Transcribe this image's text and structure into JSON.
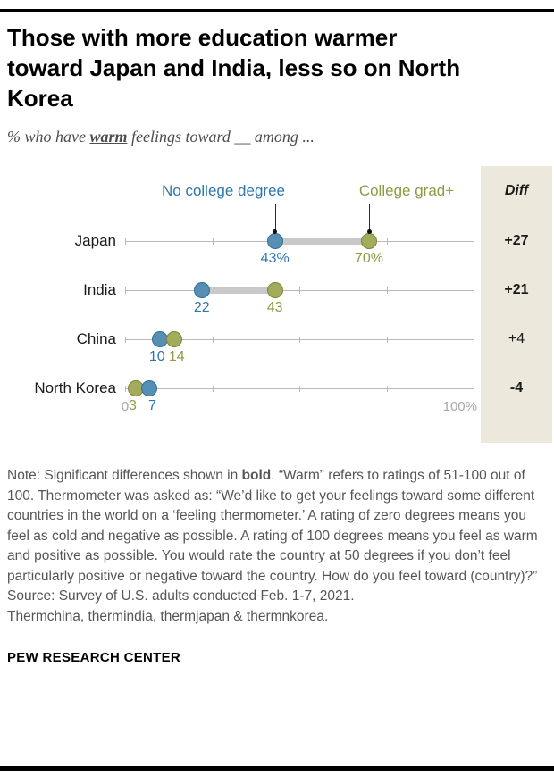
{
  "header": {
    "title_lines": [
      "Those with more education warmer",
      "toward Japan and India, less so on North",
      "Korea"
    ],
    "subtitle_prefix": "% who have ",
    "subtitle_emphasis": "warm",
    "subtitle_suffix": " feelings toward __ among ..."
  },
  "chart_data": {
    "type": "dumbbell",
    "categories": [
      "Japan",
      "India",
      "China",
      "North Korea"
    ],
    "series": [
      {
        "key": "no-college-degree",
        "name": "No college degree",
        "color": "#2e77ac",
        "dot_fill": "#568eb4",
        "dot_border": "#2f6f99",
        "values": [
          43,
          22,
          10,
          7
        ]
      },
      {
        "key": "college-grad",
        "name": "College grad+",
        "color": "#8f9a43",
        "dot_fill": "#a4ac5b",
        "dot_border": "#7c8439",
        "values": [
          70,
          43,
          14,
          3
        ]
      }
    ],
    "value_labels": [
      [
        "43%",
        "70%"
      ],
      [
        "22",
        "43"
      ],
      [
        "10",
        "14"
      ],
      [
        "7",
        "3"
      ]
    ],
    "diff_label": "Diff",
    "diffs": [
      {
        "text": "+27",
        "bold": true
      },
      {
        "text": "+21",
        "bold": true
      },
      {
        "text": "+4",
        "bold": false
      },
      {
        "text": "-4",
        "bold": true
      }
    ],
    "axis": {
      "min": 0,
      "max": 100,
      "min_label": "0",
      "max_label": "100%",
      "ticks": [
        0,
        25,
        50,
        75,
        100
      ]
    },
    "colors": {
      "diff_background": "#ece8dc",
      "connector": "#c9c9c9",
      "axis": "#b9b9b9"
    }
  },
  "notes": {
    "p1": "Note: Significant differences shown in ",
    "bold": "bold",
    "p2": ". “Warm” refers to ratings of 51-100 out of 100. Thermometer was asked as: “We’d like to get your feelings toward some different countries in the world on a ‘feeling thermometer.’ A rating of zero degrees means you feel as cold and negative as possible. A rating of 100 degrees means you feel as warm and positive as possible. You would rate the country at 50 degrees if you don’t feel particularly positive or negative toward the country. How do you feel toward (country)?”",
    "source": "Source: Survey of U.S. adults conducted Feb. 1-7, 2021.",
    "vars": "Thermchina, thermindia, thermjapan & thermnkorea."
  },
  "footer": {
    "brand": "PEW RESEARCH CENTER"
  }
}
